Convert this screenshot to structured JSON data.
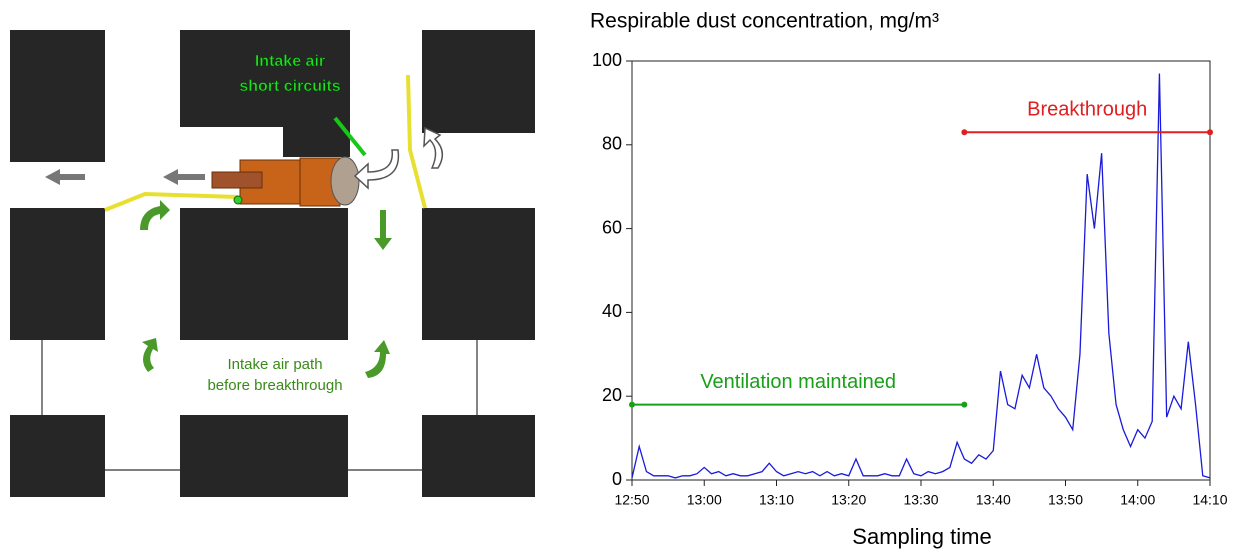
{
  "diagram": {
    "labels": [
      "Intake air",
      "short circuits",
      "Intake air path",
      "before breakthrough"
    ]
  },
  "chart_data": {
    "type": "line",
    "title": "Respirable dust concentration, mg/m³",
    "x_label": "Sampling time",
    "x": [
      "12:50",
      "12:51",
      "12:52",
      "12:53",
      "12:54",
      "12:55",
      "12:56",
      "12:57",
      "12:58",
      "12:59",
      "13:00",
      "13:01",
      "13:02",
      "13:03",
      "13:04",
      "13:05",
      "13:06",
      "13:07",
      "13:08",
      "13:09",
      "13:10",
      "13:11",
      "13:12",
      "13:13",
      "13:14",
      "13:15",
      "13:16",
      "13:17",
      "13:18",
      "13:19",
      "13:20",
      "13:21",
      "13:22",
      "13:23",
      "13:24",
      "13:25",
      "13:26",
      "13:27",
      "13:28",
      "13:29",
      "13:30",
      "13:31",
      "13:32",
      "13:33",
      "13:34",
      "13:35",
      "13:36",
      "13:37",
      "13:38",
      "13:39",
      "13:40",
      "13:41",
      "13:42",
      "13:43",
      "13:44",
      "13:45",
      "13:46",
      "13:47",
      "13:48",
      "13:49",
      "13:50",
      "13:51",
      "13:52",
      "13:53",
      "13:54",
      "13:55",
      "13:56",
      "13:57",
      "13:58",
      "13:59",
      "14:00",
      "14:01",
      "14:02",
      "14:03",
      "14:04",
      "14:05",
      "14:06",
      "14:07",
      "14:08",
      "14:09",
      "14:10"
    ],
    "series": [
      {
        "name": "Respirable dust",
        "color": "#1a1adb",
        "values": [
          0.5,
          8,
          2,
          1,
          1,
          1,
          0.5,
          1,
          1,
          1.5,
          3,
          1.5,
          2,
          1,
          1.5,
          1,
          1,
          1.5,
          2,
          4,
          2,
          1,
          1.5,
          2,
          1.5,
          2,
          1,
          2,
          1,
          1.5,
          1,
          5,
          1,
          1,
          1,
          1.5,
          1,
          1,
          5,
          1.5,
          1,
          2,
          1.5,
          2,
          3,
          9,
          5,
          4,
          6,
          5,
          7,
          26,
          18,
          17,
          25,
          22,
          30,
          22,
          20,
          17,
          15,
          12,
          30,
          73,
          60,
          78,
          35,
          18,
          12,
          8,
          12,
          10,
          14,
          97,
          15,
          20,
          17,
          33,
          18,
          1,
          0.5
        ]
      }
    ],
    "xlim": [
      "12:50",
      "14:10"
    ],
    "xticks": [
      "12:50",
      "13:00",
      "13:10",
      "13:20",
      "13:30",
      "13:40",
      "13:50",
      "14:00",
      "14:10"
    ],
    "ylim": [
      0,
      100
    ],
    "yticks": [
      0,
      20,
      40,
      60,
      80,
      100
    ],
    "annotations": [
      {
        "text": "Breakthrough",
        "color": "#e02020",
        "x": [
          "13:36",
          "14:10"
        ],
        "y": 83
      },
      {
        "text": "Ventilation maintained",
        "color": "#18a018",
        "x": [
          "12:50",
          "13:36"
        ],
        "y": 18
      }
    ]
  }
}
